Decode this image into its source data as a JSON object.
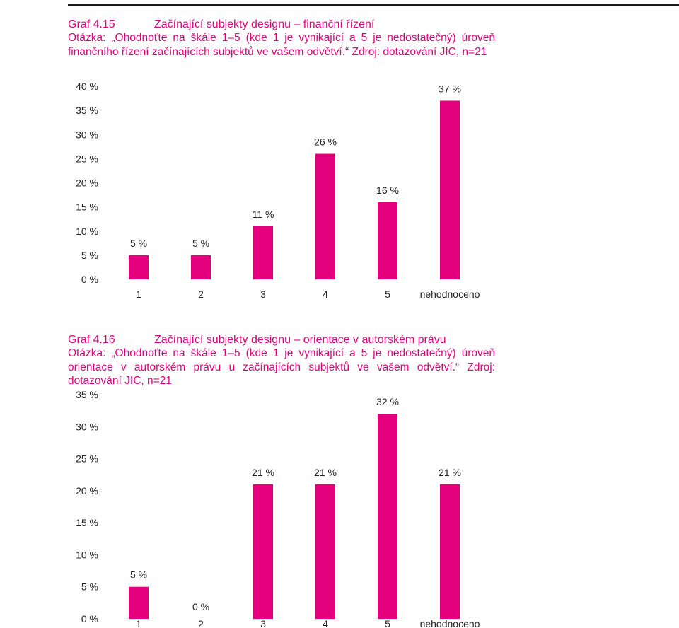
{
  "graf15": {
    "label": "Graf 4.15",
    "title": "Začínající subjekty designu – finanční řízení",
    "question": "Otázka: „Ohodnoťte na škále 1–5 (kde 1 je vynikající a 5 je nedostatečný) úroveň finančního řízení začínajících subjektů ve vašem odvětví.“",
    "source": "Zdroj: dotazování JIC, n=21"
  },
  "graf16": {
    "label": "Graf 4.16",
    "title": "Začínající subjekty designu – orientace v autorském právu",
    "question": "Otázka: „Ohodnoťte na škále 1–5 (kde 1 je vynikající a 5 je nedostatečný) úroveň orientace v autorském právu u začínajících subjektů ve vašem odvětví.“",
    "source": "Zdroj: dotazování JIC, n=21"
  },
  "colors": {
    "bar": "#e4007c",
    "text": "#e4007c"
  },
  "chart_data": [
    {
      "type": "bar",
      "categories": [
        "1",
        "2",
        "3",
        "4",
        "5",
        "nehodnoceno"
      ],
      "values": [
        5,
        5,
        11,
        26,
        16,
        37
      ],
      "data_labels": [
        "5 %",
        "5 %",
        "11 %",
        "26 %",
        "16 %",
        "37 %"
      ],
      "yticks": [
        "0 %",
        "5 %",
        "10 %",
        "15 %",
        "20 %",
        "25 %",
        "30 %",
        "35 %",
        "40 %"
      ],
      "ylim": [
        0,
        40
      ],
      "grid": false,
      "legend": "none"
    },
    {
      "type": "bar",
      "categories": [
        "1",
        "2",
        "3",
        "4",
        "5",
        "nehodnoceno"
      ],
      "values": [
        5,
        0,
        21,
        21,
        32,
        21
      ],
      "data_labels": [
        "5 %",
        "0 %",
        "21 %",
        "21 %",
        "32 %",
        "21 %"
      ],
      "yticks": [
        "0 %",
        "5 %",
        "10 %",
        "15 %",
        "20 %",
        "25 %",
        "30 %",
        "35 %"
      ],
      "ylim": [
        0,
        35
      ],
      "grid": false,
      "legend": "none"
    }
  ]
}
